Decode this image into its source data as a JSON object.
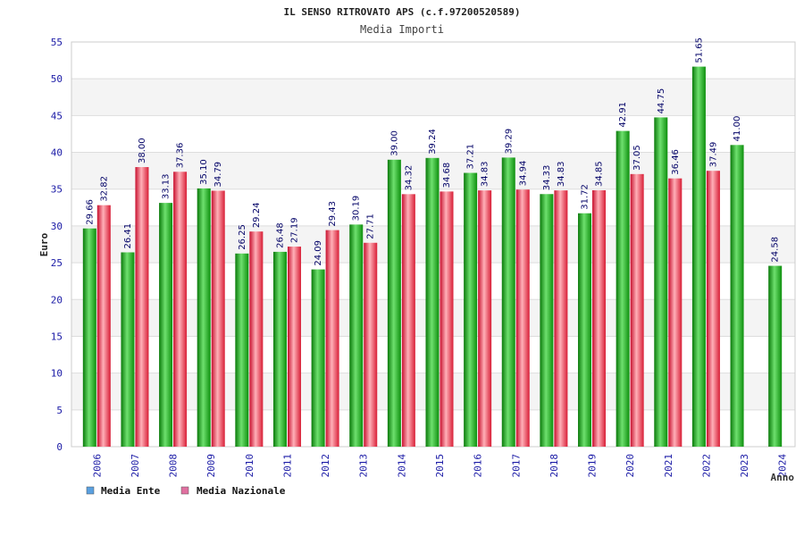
{
  "header": {
    "title": "IL SENSO RITROVATO APS (c.f.97200520589)",
    "subtitle": "Media Importi"
  },
  "chart_data": {
    "type": "bar",
    "title": "IL SENSO RITROVATO APS (c.f.97200520589)",
    "subtitle": "Media Importi",
    "xlabel": "Anno",
    "ylabel": "Euro",
    "ylim": [
      0,
      55
    ],
    "yticks": [
      0,
      5,
      10,
      15,
      20,
      25,
      30,
      35,
      40,
      45,
      50,
      55
    ],
    "grid": true,
    "legend_position": "bottom-left",
    "categories": [
      "2006",
      "2007",
      "2008",
      "2009",
      "2010",
      "2011",
      "2012",
      "2013",
      "2014",
      "2015",
      "2016",
      "2017",
      "2018",
      "2019",
      "2020",
      "2021",
      "2022",
      "2023",
      "2024"
    ],
    "series": [
      {
        "name": "Media Ente",
        "color": "#22b822",
        "legend_color": "#5aa0e0",
        "values": [
          29.66,
          26.41,
          33.13,
          35.1,
          26.25,
          26.48,
          24.09,
          30.19,
          39.0,
          39.24,
          37.21,
          39.29,
          34.33,
          31.72,
          42.91,
          44.75,
          51.65,
          41.0,
          24.58
        ],
        "labels": [
          "29.66",
          "26.41",
          "33.13",
          "35.10",
          "26.25",
          "26.48",
          "24.09",
          "30.19",
          "39.00",
          "39.24",
          "37.21",
          "39.29",
          "34.33",
          "31.72",
          "42.91",
          "44.75",
          "51.65",
          "41.00",
          "24.58"
        ]
      },
      {
        "name": "Media Nazionale",
        "color": "#e8384a",
        "legend_color": "#e070a0",
        "values": [
          32.82,
          38.0,
          37.36,
          34.79,
          29.24,
          27.19,
          29.43,
          27.71,
          34.32,
          34.68,
          34.83,
          34.94,
          34.83,
          34.85,
          37.05,
          36.46,
          37.49,
          null,
          null
        ],
        "labels": [
          "32.82",
          "38.00",
          "37.36",
          "34.79",
          "29.24",
          "27.19",
          "29.43",
          "27.71",
          "34.32",
          "34.68",
          "34.83",
          "34.94",
          "34.83",
          "34.85",
          "37.05",
          "36.46",
          "37.49",
          null,
          null
        ]
      }
    ]
  }
}
